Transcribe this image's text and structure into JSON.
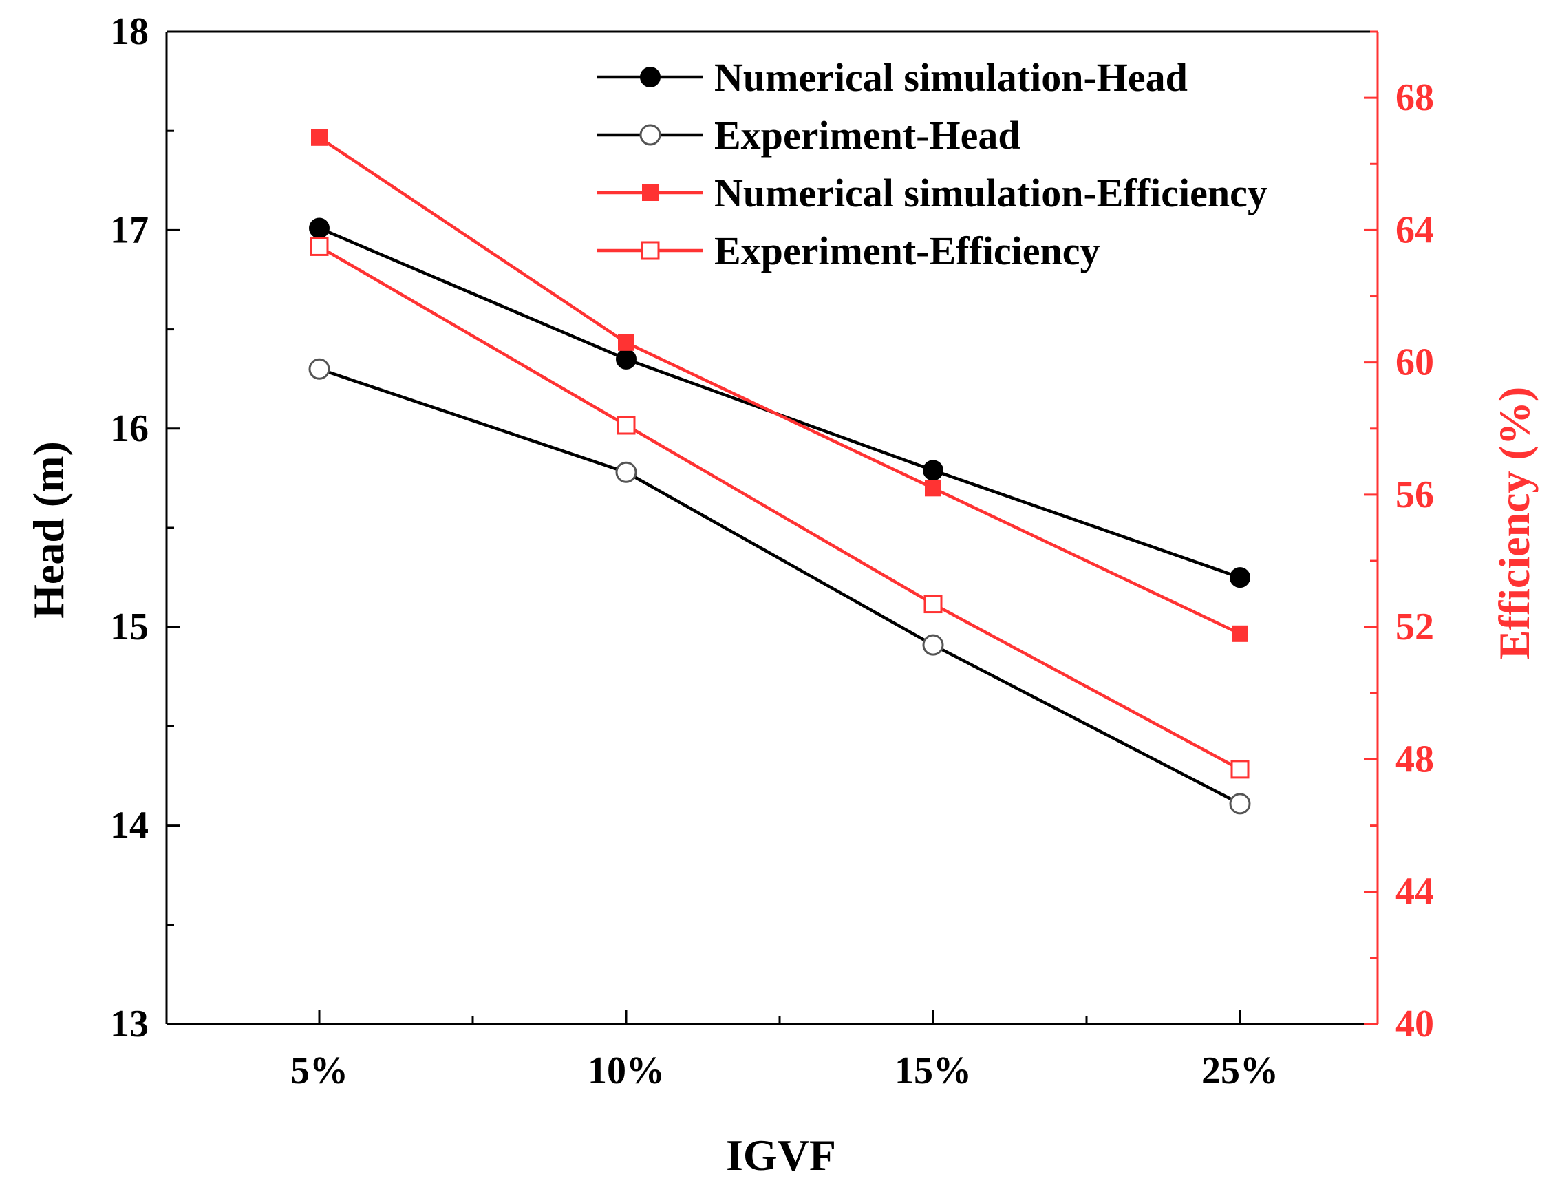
{
  "chart_data": {
    "type": "line",
    "title": "",
    "xlabel": "IGVF",
    "ylabel": "Head (m)",
    "y2label": "Efficiency (%)",
    "categories": [
      "5%",
      "10%",
      "15%",
      "25%"
    ],
    "ylim": [
      13,
      18
    ],
    "y2lim": [
      40,
      70
    ],
    "yticks": [
      "13",
      "14",
      "15",
      "16",
      "17",
      "18"
    ],
    "y2ticks": [
      "40",
      "44",
      "48",
      "52",
      "56",
      "60",
      "64",
      "68"
    ],
    "legend_position": "top-right",
    "series": [
      {
        "name": "Numerical simulation-Head",
        "axis": "left",
        "marker": "circle-filled",
        "color": "#000000",
        "values": [
          17.01,
          16.35,
          15.79,
          15.25
        ]
      },
      {
        "name": "Experiment-Head",
        "axis": "left",
        "marker": "circle-open",
        "color": "#000000",
        "values": [
          16.3,
          15.78,
          14.91,
          14.11
        ]
      },
      {
        "name": "Numerical simulation-Efficiency",
        "axis": "right",
        "marker": "square-filled",
        "color": "#ff3333",
        "values": [
          66.8,
          60.6,
          56.2,
          51.8
        ]
      },
      {
        "name": "Experiment-Efficiency",
        "axis": "right",
        "marker": "square-open",
        "color": "#ff3333",
        "values": [
          63.5,
          58.1,
          52.7,
          47.7
        ]
      }
    ],
    "colors": {
      "left_axis": "#000000",
      "right_axis": "#ff3333"
    }
  }
}
